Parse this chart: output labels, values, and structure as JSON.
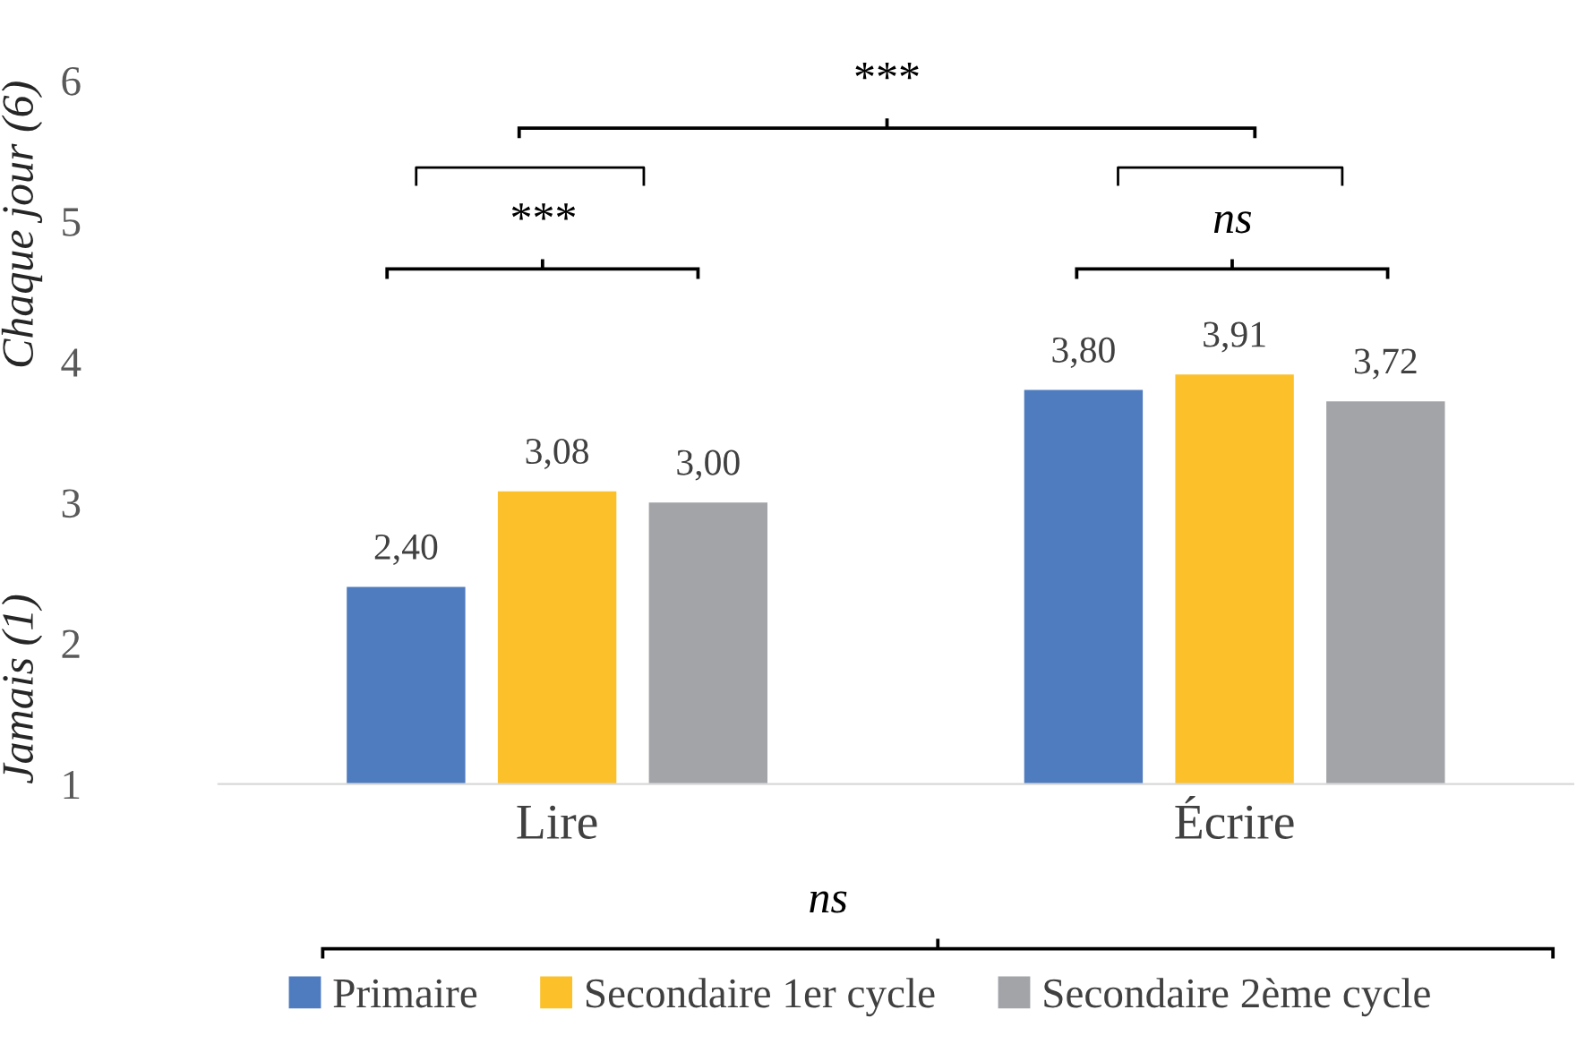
{
  "chart_data": {
    "type": "bar",
    "categories": [
      "Lire",
      "Écrire"
    ],
    "series": [
      {
        "name": "Primaire",
        "color": "#4f7bbf",
        "values": [
          2.4,
          3.8
        ],
        "value_labels": [
          "2,40",
          "3,80"
        ]
      },
      {
        "name": "Secondaire 1er cycle",
        "color": "#fcc12a",
        "values": [
          3.08,
          3.91
        ],
        "value_labels": [
          "3,08",
          "3,91"
        ]
      },
      {
        "name": "Secondaire 2ème cycle",
        "color": "#a2a4a8",
        "values": [
          3.0,
          3.72
        ],
        "value_labels": [
          "3,00",
          "3,72"
        ]
      }
    ],
    "ylim": [
      1,
      6
    ],
    "yticks": [
      1,
      2,
      3,
      4,
      5,
      6
    ],
    "annotations": [
      "Chaque jour (6)",
      "Jamais (1)",
      "***",
      "***",
      "ns",
      "ns"
    ],
    "legend": "bottom",
    "grid": false
  }
}
